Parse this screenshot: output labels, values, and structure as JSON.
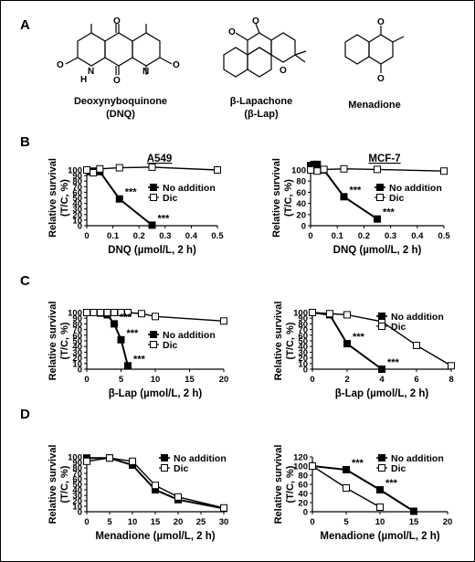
{
  "panels": {
    "A": {
      "label": "A",
      "compounds": [
        {
          "name_line1": "Deoxynyboquinone",
          "name_line2": "(DNQ)"
        },
        {
          "name_line1": "β-Lapachone",
          "name_line2": "(β-Lap)"
        },
        {
          "name_line1": "Menadione",
          "name_line2": ""
        }
      ],
      "structure_labels": {
        "oxygen": "O",
        "nh": "N",
        "h": "H",
        "n": "N"
      }
    },
    "B": {
      "label": "B"
    },
    "C": {
      "label": "C"
    },
    "D": {
      "label": "D"
    }
  },
  "legend": {
    "no_addition": "No addition",
    "dic": "Dic"
  },
  "significance": "***",
  "colors": {
    "no_addition": "#000000",
    "dic": "#ffffff",
    "line": "#000000"
  },
  "chart_data": [
    {
      "id": "B-left",
      "type": "line",
      "title": "A549",
      "xlabel": "DNQ (µmol/L, 2 h)",
      "ylabel": "Relative survival (T/C, %)",
      "xlim": [
        0,
        0.5
      ],
      "ylim": [
        0,
        100
      ],
      "xticks": [
        0,
        0.1,
        0.2,
        0.3,
        0.4,
        0.5
      ],
      "yticks": [
        0,
        10,
        20,
        30,
        40,
        50,
        60,
        70,
        80,
        90,
        100
      ],
      "legend_position": "center-right",
      "series": [
        {
          "name": "No addition",
          "marker": "filled-square",
          "x": [
            0,
            0.0125,
            0.025,
            0.05,
            0.125,
            0.25
          ],
          "y": [
            100,
            97,
            98,
            97,
            48,
            1
          ]
        },
        {
          "name": "Dic",
          "marker": "open-square",
          "x": [
            0,
            0.025,
            0.05,
            0.125,
            0.25,
            0.5
          ],
          "y": [
            100,
            95,
            102,
            104,
            105,
            100
          ]
        }
      ],
      "annotations": [
        {
          "text": "***",
          "x": 0.125,
          "y": 48
        },
        {
          "text": "***",
          "x": 0.25,
          "y": 1
        }
      ]
    },
    {
      "id": "B-right",
      "type": "line",
      "title": "MCF-7",
      "xlabel": "DNQ (µmol/L, 2 h)",
      "ylabel": "Relative survival (T/C, %)",
      "xlim": [
        0,
        0.5
      ],
      "ylim": [
        0,
        100
      ],
      "xticks": [
        0,
        0.1,
        0.2,
        0.3,
        0.4,
        0.5
      ],
      "yticks": [
        0,
        20,
        40,
        60,
        80,
        100
      ],
      "legend_position": "center-right",
      "series": [
        {
          "name": "No addition",
          "marker": "filled-square",
          "x": [
            0,
            0.0125,
            0.025,
            0.05,
            0.125,
            0.25
          ],
          "y": [
            108,
            110,
            110,
            100,
            52,
            12
          ]
        },
        {
          "name": "Dic",
          "marker": "open-square",
          "x": [
            0,
            0.025,
            0.05,
            0.125,
            0.25,
            0.5
          ],
          "y": [
            100,
            98,
            101,
            102,
            101,
            98
          ]
        }
      ],
      "annotations": [
        {
          "text": "***",
          "x": 0.125,
          "y": 52
        },
        {
          "text": "***",
          "x": 0.25,
          "y": 12
        }
      ]
    },
    {
      "id": "C-left",
      "type": "line",
      "title": "",
      "xlabel": "β-Lap (µmol/L, 2 h)",
      "ylabel": "Relative survival (T/C, %)",
      "xlim": [
        0,
        20
      ],
      "ylim": [
        0,
        100
      ],
      "xticks": [
        0,
        5,
        10,
        15,
        20
      ],
      "yticks": [
        0,
        10,
        20,
        30,
        40,
        50,
        60,
        70,
        80,
        90,
        100
      ],
      "legend_position": "center-right",
      "series": [
        {
          "name": "No addition",
          "marker": "filled-square",
          "x": [
            0,
            1,
            2,
            3,
            4,
            5,
            6
          ],
          "y": [
            100,
            100,
            99,
            96,
            80,
            52,
            6
          ]
        },
        {
          "name": "Dic",
          "marker": "open-square",
          "x": [
            0,
            1,
            2,
            3,
            4,
            5,
            6,
            8,
            10,
            20
          ],
          "y": [
            100,
            100,
            100,
            100,
            100,
            100,
            100,
            98,
            93,
            85
          ]
        }
      ],
      "annotations": [
        {
          "text": "***",
          "x": 4,
          "y": 80
        },
        {
          "text": "***",
          "x": 5,
          "y": 52
        },
        {
          "text": "***",
          "x": 6,
          "y": 6
        }
      ]
    },
    {
      "id": "C-right",
      "type": "line",
      "title": "",
      "xlabel": "β-Lap (µmol/L, 2 h)",
      "ylabel": "Relative survival (T/C, %)",
      "xlim": [
        0,
        8
      ],
      "ylim": [
        0,
        100
      ],
      "xticks": [
        0,
        2,
        4,
        6,
        8
      ],
      "yticks": [
        0,
        10,
        20,
        30,
        40,
        50,
        60,
        70,
        80,
        90,
        100
      ],
      "legend_position": "top-right",
      "series": [
        {
          "name": "No addition",
          "marker": "filled-square",
          "x": [
            0,
            1,
            2,
            4
          ],
          "y": [
            100,
            96,
            45,
            0
          ]
        },
        {
          "name": "Dic",
          "marker": "open-square",
          "x": [
            0,
            1,
            2,
            4,
            6,
            8
          ],
          "y": [
            100,
            98,
            96,
            84,
            42,
            6
          ]
        }
      ],
      "annotations": [
        {
          "text": "***",
          "x": 2,
          "y": 45
        },
        {
          "text": "***",
          "x": 4,
          "y": 0
        }
      ]
    },
    {
      "id": "D-left",
      "type": "line",
      "title": "",
      "xlabel": "Menadione (µmol/L, 2 h)",
      "ylabel": "Relative survival (T/C, %)",
      "xlim": [
        0,
        30
      ],
      "ylim": [
        0,
        100
      ],
      "xticks": [
        0,
        5,
        10,
        15,
        20,
        25,
        30
      ],
      "yticks": [
        0,
        10,
        20,
        30,
        40,
        50,
        60,
        70,
        80,
        90,
        100
      ],
      "legend_position": "top-right",
      "series": [
        {
          "name": "No addition",
          "marker": "filled-square",
          "x": [
            0,
            5,
            10,
            15,
            20,
            30
          ],
          "y": [
            98,
            98,
            85,
            40,
            22,
            6
          ]
        },
        {
          "name": "Dic",
          "marker": "open-square",
          "x": [
            0,
            5,
            10,
            15,
            20,
            30
          ],
          "y": [
            92,
            98,
            92,
            48,
            27,
            7
          ]
        }
      ],
      "annotations": []
    },
    {
      "id": "D-right",
      "type": "line",
      "title": "",
      "xlabel": "Menadione (µmol/L, 2 h)",
      "ylabel": "Relative survival (T/C, %)",
      "xlim": [
        0,
        20
      ],
      "ylim": [
        0,
        120
      ],
      "xticks": [
        0,
        5,
        10,
        15,
        20
      ],
      "yticks": [
        0,
        20,
        40,
        60,
        80,
        100,
        120
      ],
      "legend_position": "top-right",
      "series": [
        {
          "name": "No addition",
          "marker": "filled-square",
          "x": [
            0,
            5,
            10,
            15
          ],
          "y": [
            100,
            92,
            48,
            1
          ]
        },
        {
          "name": "Dic",
          "marker": "open-square",
          "x": [
            0,
            5,
            10
          ],
          "y": [
            100,
            52,
            10
          ]
        }
      ],
      "annotations": [
        {
          "text": "***",
          "x": 5,
          "y": 92
        },
        {
          "text": "***",
          "x": 10,
          "y": 48
        }
      ]
    }
  ]
}
